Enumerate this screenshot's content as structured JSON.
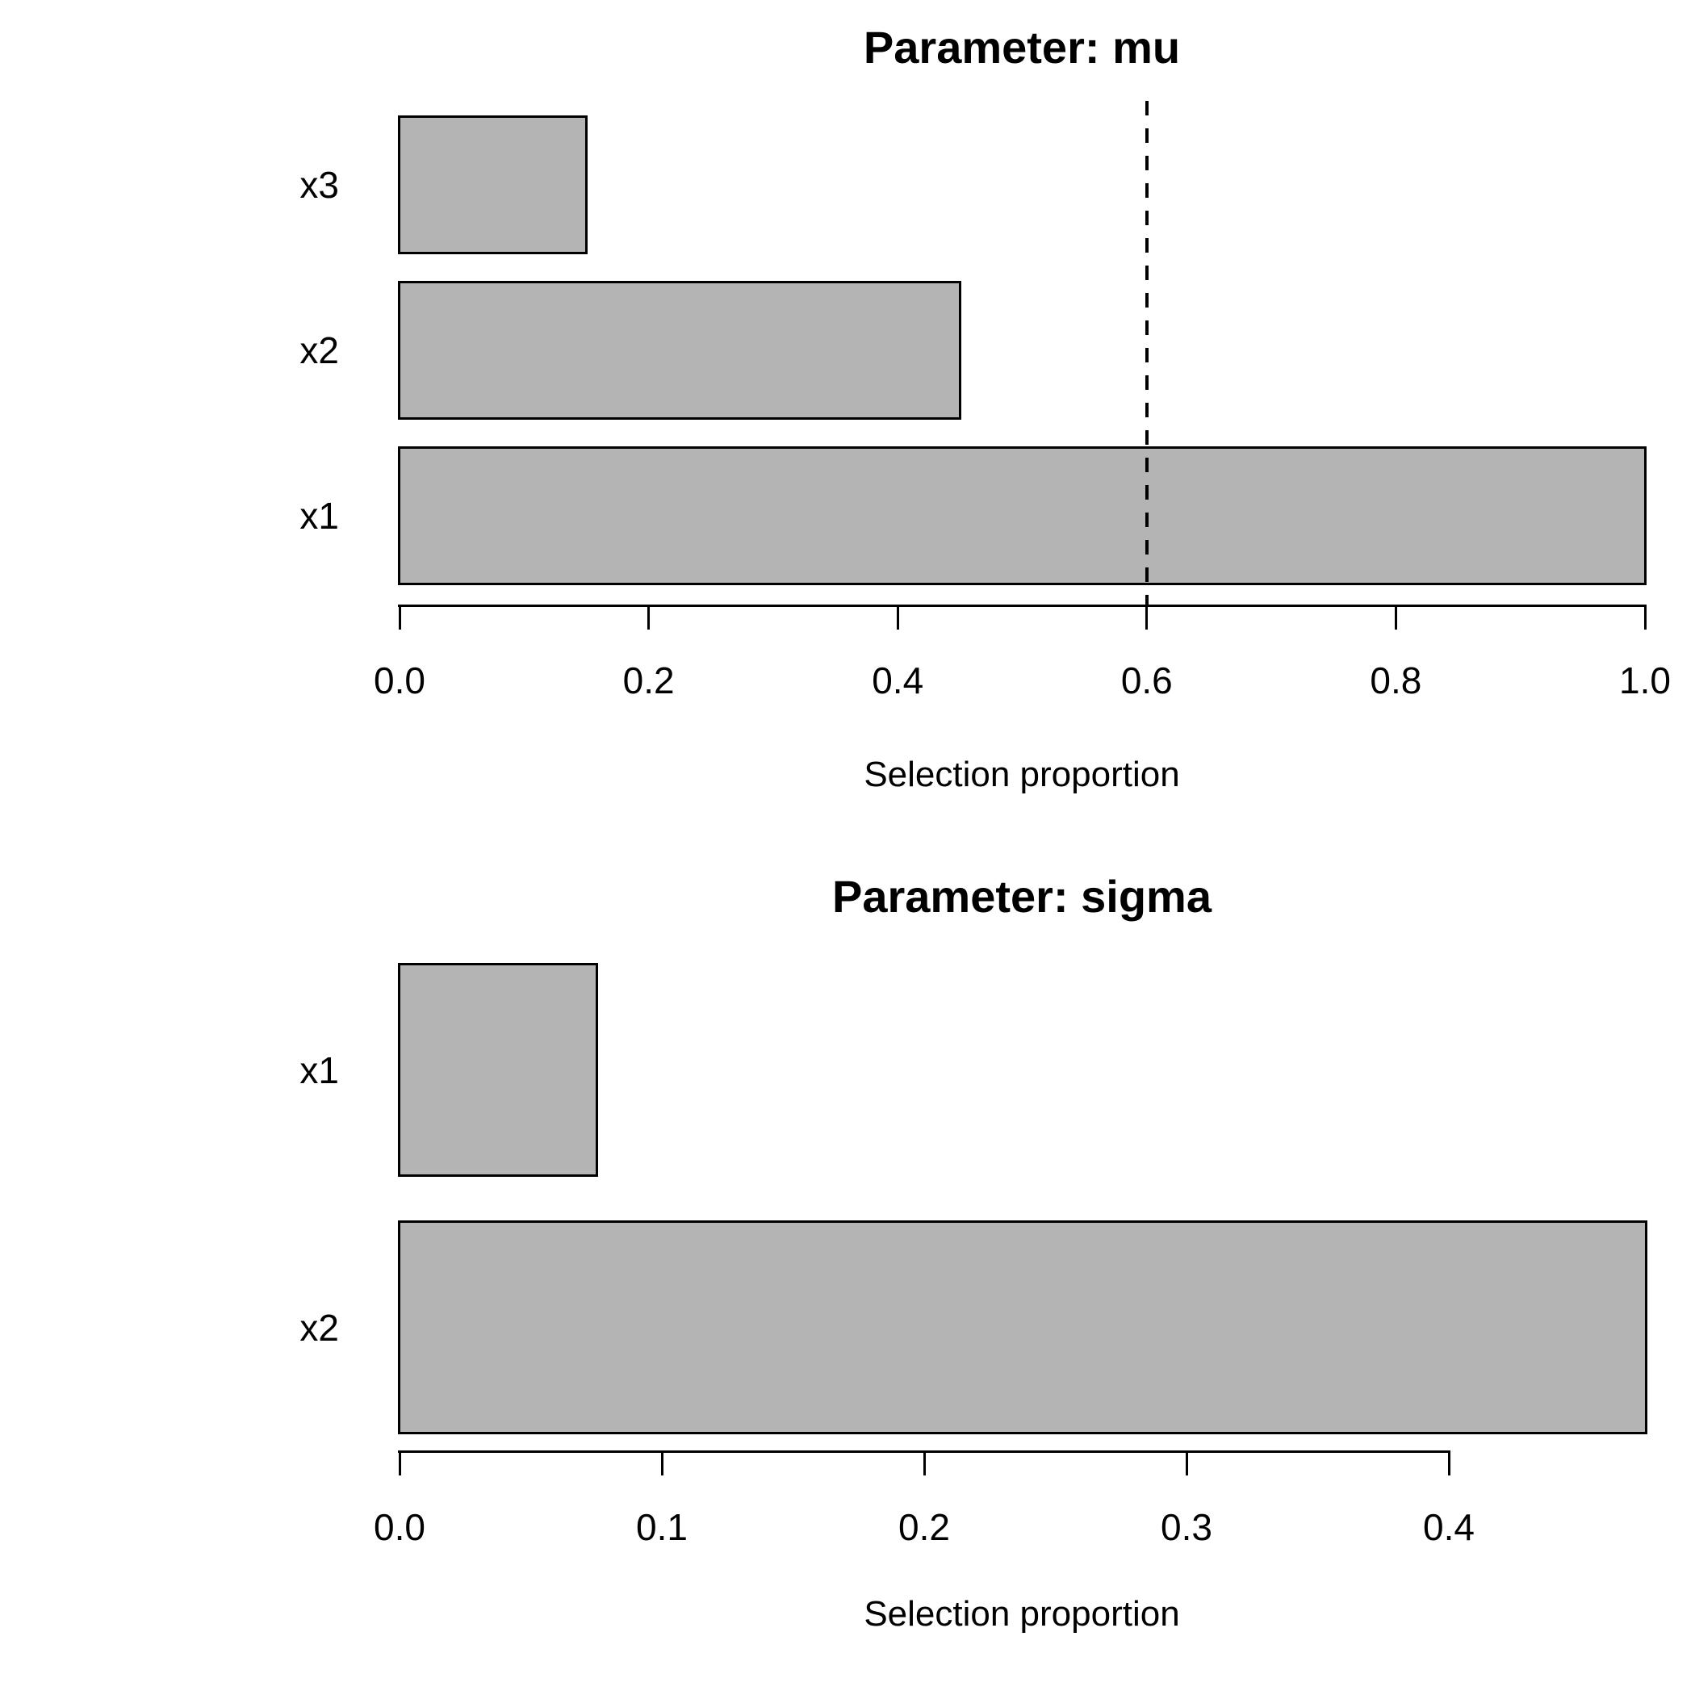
{
  "figure": {
    "background": "#ffffff",
    "bar_fill": "#b4b4b4",
    "bar_border": "#000000",
    "text_color": "#000000"
  },
  "chart_data": [
    {
      "type": "bar",
      "orientation": "horizontal",
      "title": "Parameter: mu",
      "xlabel": "Selection proportion",
      "categories": [
        "x3",
        "x2",
        "x1"
      ],
      "values": [
        0.15,
        0.45,
        1.0
      ],
      "xlim": [
        0,
        1.0
      ],
      "xticks": [
        0.0,
        0.2,
        0.4,
        0.6,
        0.8,
        1.0
      ],
      "xtick_labels": [
        "0.0",
        "0.2",
        "0.4",
        "0.6",
        "0.8",
        "1.0"
      ],
      "threshold_line": {
        "value": 0.6,
        "style": "dashed",
        "color": "#000000"
      },
      "bar_color": "#b4b4b4",
      "grid": false,
      "legend": false
    },
    {
      "type": "bar",
      "orientation": "horizontal",
      "title": "Parameter: sigma",
      "xlabel": "Selection proportion",
      "categories": [
        "x1",
        "x2"
      ],
      "values": [
        0.075,
        0.475
      ],
      "xlim": [
        0,
        0.475
      ],
      "xticks": [
        0.0,
        0.1,
        0.2,
        0.3,
        0.4
      ],
      "xtick_labels": [
        "0.0",
        "0.1",
        "0.2",
        "0.3",
        "0.4"
      ],
      "threshold_line": null,
      "bar_color": "#b4b4b4",
      "grid": false,
      "legend": false
    }
  ]
}
